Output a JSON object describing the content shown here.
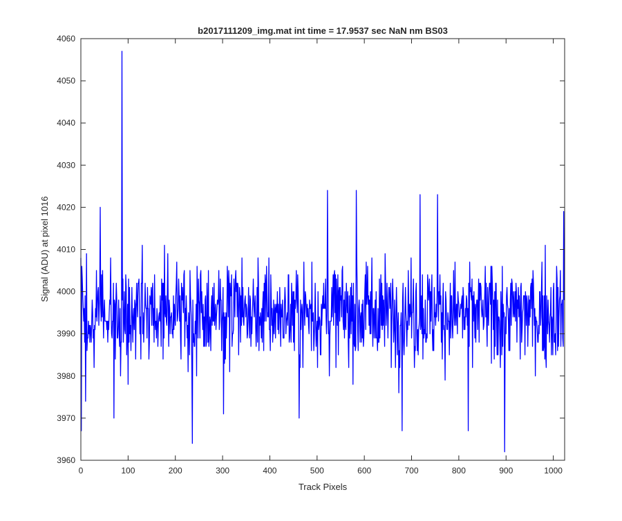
{
  "chart_data": {
    "type": "line",
    "title": "b2017111209_img.mat int time = 17.9537 sec  NaN nm BS03",
    "xlabel": "Track Pixels",
    "ylabel": "Signal (ADU) at pixel 1016",
    "xlim": [
      0,
      1024
    ],
    "ylim": [
      3960,
      4060
    ],
    "xticks": [
      0,
      100,
      200,
      300,
      400,
      500,
      600,
      700,
      800,
      900,
      1000
    ],
    "yticks": [
      3960,
      3970,
      3980,
      3990,
      4000,
      4010,
      4020,
      4030,
      4040,
      4050,
      4060
    ],
    "grid": false,
    "legend": "none",
    "series": [
      {
        "color": "#0000ff",
        "points_count": 1024,
        "baseline": 3995,
        "spread": 6,
        "extremes": [
          {
            "x": 1,
            "y": 3967
          },
          {
            "x": 10,
            "y": 3974
          },
          {
            "x": 41,
            "y": 4020
          },
          {
            "x": 70,
            "y": 3970
          },
          {
            "x": 87,
            "y": 4057
          },
          {
            "x": 236,
            "y": 3964
          },
          {
            "x": 302,
            "y": 3971
          },
          {
            "x": 462,
            "y": 3970
          },
          {
            "x": 522,
            "y": 4024
          },
          {
            "x": 583,
            "y": 4024
          },
          {
            "x": 680,
            "y": 3967
          },
          {
            "x": 718,
            "y": 4023
          },
          {
            "x": 755,
            "y": 4023
          },
          {
            "x": 820,
            "y": 3967
          },
          {
            "x": 897,
            "y": 3962
          },
          {
            "x": 1022,
            "y": 4019
          }
        ]
      }
    ]
  }
}
